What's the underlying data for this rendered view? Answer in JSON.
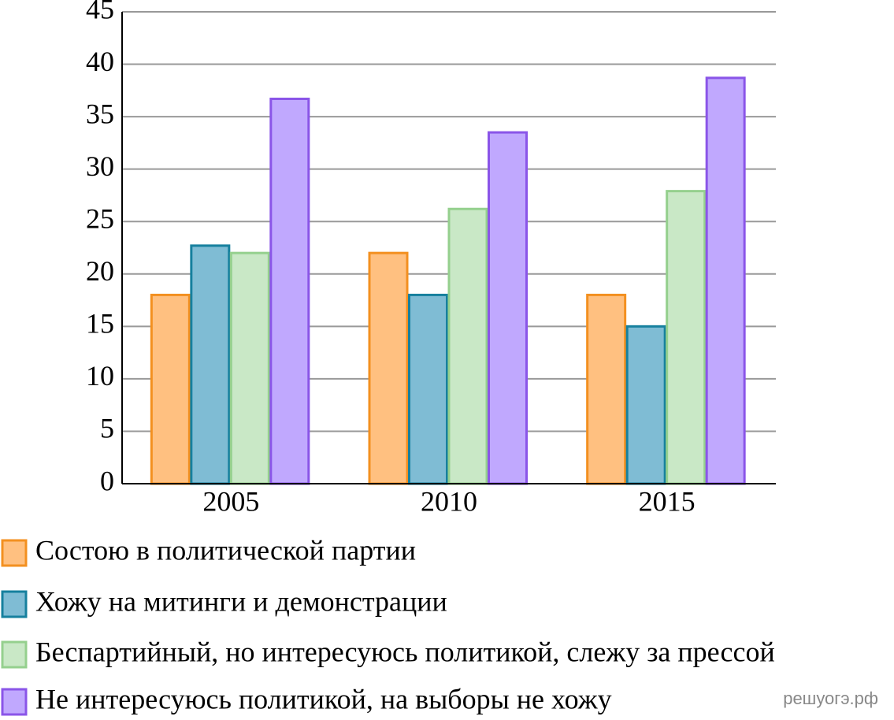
{
  "chart_data": {
    "type": "bar",
    "categories": [
      "2005",
      "2010",
      "2015"
    ],
    "series": [
      {
        "name": "Состою в политической партии",
        "color": "#ffc080",
        "edge_color": "#f39020",
        "values": [
          18,
          22,
          18
        ]
      },
      {
        "name": "Хожу на митинги и демонстрации",
        "color": "#7fbcd4",
        "edge_color": "#16809e",
        "values": [
          22.7,
          18,
          15
        ]
      },
      {
        "name": "Беспартийный, но интересуюсь политикой, слежу за прессой",
        "color": "#c9e8c6",
        "edge_color": "#95d08e",
        "values": [
          22,
          26.2,
          27.9
        ]
      },
      {
        "name": "Не интересуюсь политикой, на выборы не хожу",
        "color": "#c0a8fe",
        "edge_color": "#8a55e8",
        "values": [
          36.7,
          33.5,
          38.7
        ]
      }
    ],
    "ylim": [
      0,
      45
    ],
    "yticks": [
      0,
      5,
      10,
      15,
      20,
      25,
      30,
      35,
      40,
      45
    ],
    "grid": true,
    "watermark": "решуогэ.рф"
  }
}
